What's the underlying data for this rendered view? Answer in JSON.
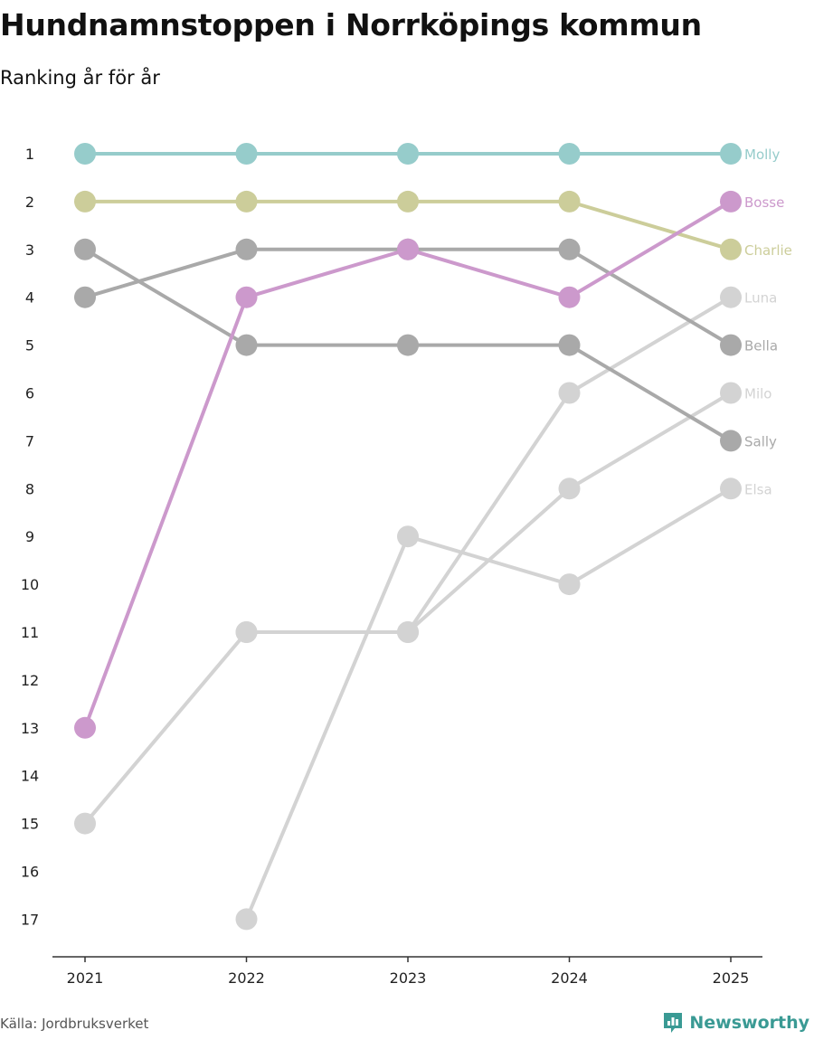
{
  "title": "Hundnamnstoppen i Norrköpings kommun",
  "subtitle": "Ranking år för år",
  "source": "Källa: Jordbruksverket",
  "brand": "Newsworthy",
  "colors": {
    "brand": "#3a9a94",
    "axis": "#333333"
  },
  "chart_data": {
    "type": "line",
    "x": [
      "2021",
      "2022",
      "2023",
      "2024",
      "2025"
    ],
    "y_ticks": [
      "1",
      "2",
      "3",
      "4",
      "5",
      "6",
      "7",
      "8",
      "9",
      "10",
      "11",
      "12",
      "13",
      "14",
      "15",
      "16",
      "17"
    ],
    "ylim": [
      1,
      17
    ],
    "y_reversed": true,
    "grid": false,
    "series": [
      {
        "name": "Milo",
        "color": "#d3d3d3",
        "values": [
          15,
          11,
          11,
          8,
          6
        ]
      },
      {
        "name": "Elsa",
        "color": "#d3d3d3",
        "values": [
          null,
          17,
          9,
          10,
          8
        ]
      },
      {
        "name": "Luna",
        "color": "#d3d3d3",
        "values": [
          null,
          11,
          11,
          6,
          4
        ]
      },
      {
        "name": "Bella",
        "color": "#a9a9a9",
        "values": [
          4,
          3,
          3,
          3,
          5
        ]
      },
      {
        "name": "Sally",
        "color": "#a9a9a9",
        "values": [
          3,
          5,
          5,
          5,
          7
        ]
      },
      {
        "name": "Charlie",
        "color": "#cccd9a",
        "values": [
          2,
          2,
          2,
          2,
          3
        ]
      },
      {
        "name": "Molly",
        "color": "#96cccb",
        "values": [
          1,
          1,
          1,
          1,
          1
        ]
      },
      {
        "name": "Bosse",
        "color": "#cc99cc",
        "values": [
          13,
          4,
          3,
          4,
          2
        ]
      }
    ]
  }
}
